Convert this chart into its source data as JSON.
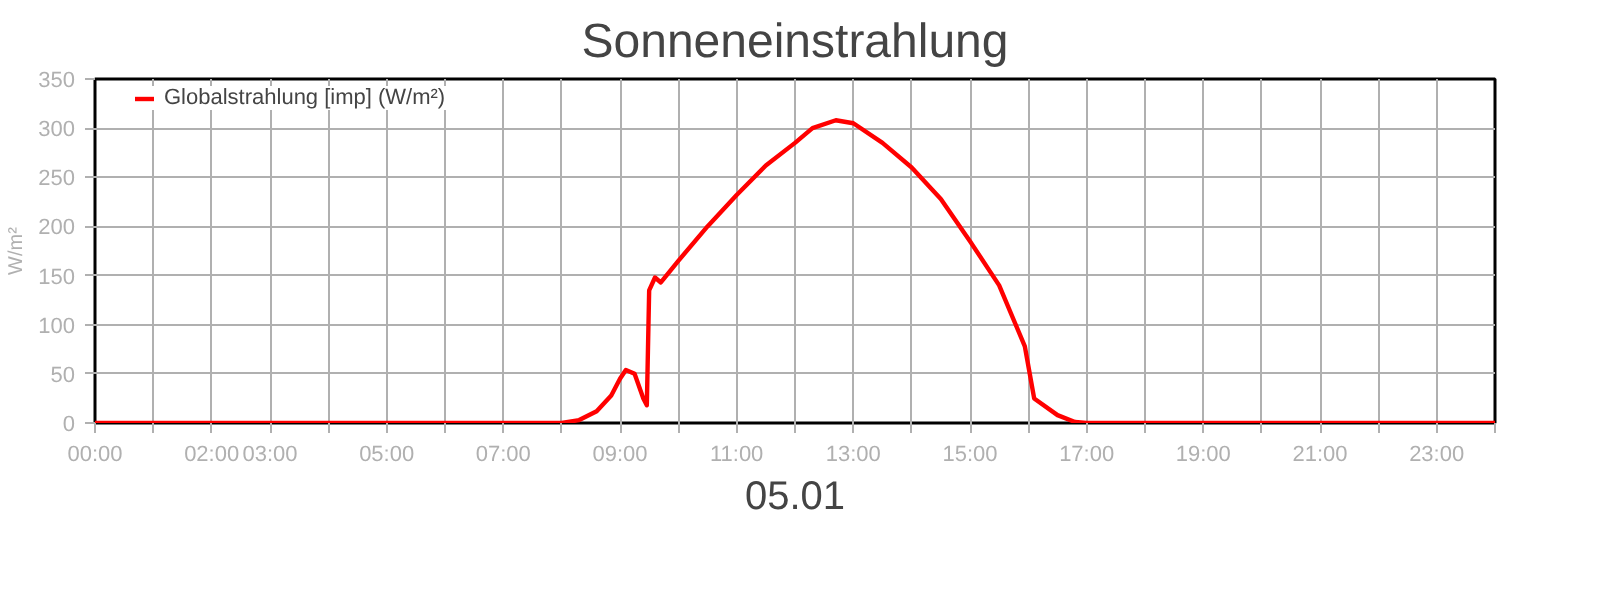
{
  "chart_data": {
    "type": "line",
    "title": "Sonneneinstrahlung",
    "xlabel": "05.01",
    "ylabel": "W/m²",
    "x": [
      0,
      8.0,
      8.3,
      8.6,
      8.85,
      9.0,
      9.1,
      9.25,
      9.4,
      9.46,
      9.5,
      9.6,
      9.7,
      10.0,
      10.5,
      11.0,
      11.5,
      12.0,
      12.3,
      12.7,
      13.0,
      13.5,
      14.0,
      14.5,
      15.0,
      15.5,
      15.94,
      16.1,
      16.5,
      16.8,
      17.0,
      24
    ],
    "series": [
      {
        "name": "Globalstrahlung [imp] (W/m²)",
        "color": "#ff0000",
        "values": [
          0,
          0,
          3,
          12,
          28,
          45,
          54,
          50,
          25,
          18,
          135,
          148,
          143,
          165,
          200,
          232,
          262,
          285,
          300,
          308,
          305,
          285,
          260,
          228,
          185,
          140,
          78,
          25,
          8,
          1,
          0,
          0
        ]
      }
    ],
    "xlim": [
      0,
      24
    ],
    "ylim": [
      0,
      350
    ],
    "yticks": [
      0,
      50,
      100,
      150,
      200,
      250,
      300,
      350
    ],
    "xticks": [
      {
        "value": 0,
        "label": "00:00"
      },
      {
        "value": 1,
        "label": null
      },
      {
        "value": 2,
        "label": "02:00"
      },
      {
        "value": 3,
        "label": "03:00"
      },
      {
        "value": 4,
        "label": null
      },
      {
        "value": 5,
        "label": "05:00"
      },
      {
        "value": 6,
        "label": null
      },
      {
        "value": 7,
        "label": "07:00"
      },
      {
        "value": 8,
        "label": null
      },
      {
        "value": 9,
        "label": "09:00"
      },
      {
        "value": 10,
        "label": null
      },
      {
        "value": 11,
        "label": "11:00"
      },
      {
        "value": 12,
        "label": null
      },
      {
        "value": 13,
        "label": "13:00"
      },
      {
        "value": 14,
        "label": null
      },
      {
        "value": 15,
        "label": "15:00"
      },
      {
        "value": 16,
        "label": null
      },
      {
        "value": 17,
        "label": "17:00"
      },
      {
        "value": 18,
        "label": null
      },
      {
        "value": 19,
        "label": "19:00"
      },
      {
        "value": 20,
        "label": null
      },
      {
        "value": 21,
        "label": "21:00"
      },
      {
        "value": 22,
        "label": null
      },
      {
        "value": 23,
        "label": "23:00"
      },
      {
        "value": 24,
        "label": null
      }
    ],
    "grid": true,
    "legend": "top left",
    "marker": "none",
    "line_style": "solid"
  }
}
